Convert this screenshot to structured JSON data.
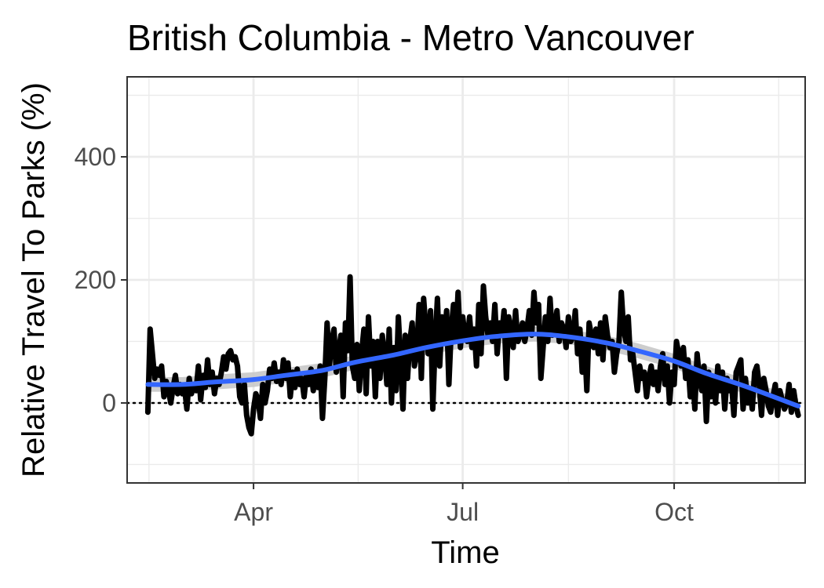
{
  "chart_data": {
    "type": "line",
    "title": "British Columbia - Metro Vancouver",
    "xlabel": "Time",
    "ylabel": "Relative Travel To Parks (%)",
    "x_ticks": [
      {
        "date": "2020-04-01",
        "label": "Apr"
      },
      {
        "date": "2020-07-01",
        "label": "Jul"
      },
      {
        "date": "2020-10-01",
        "label": "Oct"
      }
    ],
    "y_ticks": [
      0,
      200,
      400
    ],
    "xlim": [
      "2020-02-06",
      "2020-11-27"
    ],
    "ylim": [
      -130,
      530
    ],
    "grid": true,
    "reference_line": {
      "y": 0,
      "style": "dotted"
    },
    "colors": {
      "observed": "#000000",
      "smooth": "#3366FF",
      "ribbon": "#C8C8C8",
      "grid": "#EBEBEB",
      "panel_border": "#333333"
    },
    "series": [
      {
        "kind": "observed",
        "x": [
          "2020-02-15",
          "2020-02-16",
          "2020-02-17",
          "2020-02-18",
          "2020-02-19",
          "2020-02-20",
          "2020-02-21",
          "2020-02-22",
          "2020-02-23",
          "2020-02-24",
          "2020-02-25",
          "2020-02-26",
          "2020-02-27",
          "2020-02-28",
          "2020-02-29",
          "2020-03-01",
          "2020-03-02",
          "2020-03-03",
          "2020-03-04",
          "2020-03-05",
          "2020-03-06",
          "2020-03-07",
          "2020-03-08",
          "2020-03-09",
          "2020-03-10",
          "2020-03-11",
          "2020-03-12",
          "2020-03-13",
          "2020-03-14",
          "2020-03-15",
          "2020-03-16",
          "2020-03-17",
          "2020-03-18",
          "2020-03-19",
          "2020-03-20",
          "2020-03-21",
          "2020-03-22",
          "2020-03-23",
          "2020-03-24",
          "2020-03-25",
          "2020-03-26",
          "2020-03-27",
          "2020-03-28",
          "2020-03-29",
          "2020-03-30",
          "2020-03-31",
          "2020-04-01",
          "2020-04-02",
          "2020-04-03",
          "2020-04-04",
          "2020-04-05",
          "2020-04-06",
          "2020-04-07",
          "2020-04-08",
          "2020-04-09",
          "2020-04-10",
          "2020-04-11",
          "2020-04-12",
          "2020-04-13",
          "2020-04-14",
          "2020-04-15",
          "2020-04-16",
          "2020-04-17",
          "2020-04-18",
          "2020-04-19",
          "2020-04-20",
          "2020-04-21",
          "2020-04-22",
          "2020-04-23",
          "2020-04-24",
          "2020-04-25",
          "2020-04-26",
          "2020-04-27",
          "2020-04-28",
          "2020-04-29",
          "2020-04-30",
          "2020-05-01",
          "2020-05-02",
          "2020-05-03",
          "2020-05-04",
          "2020-05-05",
          "2020-05-06",
          "2020-05-07",
          "2020-05-08",
          "2020-05-09",
          "2020-05-10",
          "2020-05-11",
          "2020-05-12",
          "2020-05-13",
          "2020-05-14",
          "2020-05-15",
          "2020-05-16",
          "2020-05-17",
          "2020-05-18",
          "2020-05-19",
          "2020-05-20",
          "2020-05-21",
          "2020-05-22",
          "2020-05-23",
          "2020-05-24",
          "2020-05-25",
          "2020-05-26",
          "2020-05-27",
          "2020-05-28",
          "2020-05-29",
          "2020-05-30",
          "2020-05-31",
          "2020-06-01",
          "2020-06-02",
          "2020-06-03",
          "2020-06-04",
          "2020-06-05",
          "2020-06-06",
          "2020-06-07",
          "2020-06-08",
          "2020-06-09",
          "2020-06-10",
          "2020-06-11",
          "2020-06-12",
          "2020-06-13",
          "2020-06-14",
          "2020-06-15",
          "2020-06-16",
          "2020-06-17",
          "2020-06-18",
          "2020-06-19",
          "2020-06-20",
          "2020-06-21",
          "2020-06-22",
          "2020-06-23",
          "2020-06-24",
          "2020-06-25",
          "2020-06-26",
          "2020-06-27",
          "2020-06-28",
          "2020-06-29",
          "2020-06-30",
          "2020-07-01",
          "2020-07-02",
          "2020-07-03",
          "2020-07-04",
          "2020-07-05",
          "2020-07-06",
          "2020-07-07",
          "2020-07-08",
          "2020-07-09",
          "2020-07-10",
          "2020-07-11",
          "2020-07-12",
          "2020-07-13",
          "2020-07-14",
          "2020-07-15",
          "2020-07-16",
          "2020-07-17",
          "2020-07-18",
          "2020-07-19",
          "2020-07-20",
          "2020-07-21",
          "2020-07-22",
          "2020-07-23",
          "2020-07-24",
          "2020-07-25",
          "2020-07-26",
          "2020-07-27",
          "2020-07-28",
          "2020-07-29",
          "2020-07-30",
          "2020-07-31",
          "2020-08-01",
          "2020-08-02",
          "2020-08-03",
          "2020-08-04",
          "2020-08-05",
          "2020-08-06",
          "2020-08-07",
          "2020-08-08",
          "2020-08-09",
          "2020-08-10",
          "2020-08-11",
          "2020-08-12",
          "2020-08-13",
          "2020-08-14",
          "2020-08-15",
          "2020-08-16",
          "2020-08-17",
          "2020-08-18",
          "2020-08-19",
          "2020-08-20",
          "2020-08-21",
          "2020-08-22",
          "2020-08-23",
          "2020-08-24",
          "2020-08-25",
          "2020-08-26",
          "2020-08-27",
          "2020-08-28",
          "2020-08-29",
          "2020-08-30",
          "2020-08-31",
          "2020-09-01",
          "2020-09-02",
          "2020-09-03",
          "2020-09-04",
          "2020-09-05",
          "2020-09-06",
          "2020-09-07",
          "2020-09-08",
          "2020-09-09",
          "2020-09-10",
          "2020-09-11",
          "2020-09-12",
          "2020-09-13",
          "2020-09-14",
          "2020-09-15",
          "2020-09-16",
          "2020-09-17",
          "2020-09-18",
          "2020-09-19",
          "2020-09-20",
          "2020-09-21",
          "2020-09-22",
          "2020-09-23",
          "2020-09-24",
          "2020-09-25",
          "2020-09-26",
          "2020-09-27",
          "2020-09-28",
          "2020-09-29",
          "2020-09-30",
          "2020-10-01",
          "2020-10-02",
          "2020-10-03",
          "2020-10-04",
          "2020-10-05",
          "2020-10-06",
          "2020-10-07",
          "2020-10-08",
          "2020-10-09",
          "2020-10-10",
          "2020-10-11",
          "2020-10-12",
          "2020-10-13",
          "2020-10-14",
          "2020-10-15",
          "2020-10-16",
          "2020-10-17",
          "2020-10-18",
          "2020-10-19",
          "2020-10-20",
          "2020-10-21",
          "2020-10-22",
          "2020-10-23",
          "2020-10-24",
          "2020-10-25",
          "2020-10-26",
          "2020-10-27",
          "2020-10-28",
          "2020-10-29",
          "2020-10-30",
          "2020-10-31",
          "2020-11-01",
          "2020-11-02",
          "2020-11-03",
          "2020-11-04",
          "2020-11-05",
          "2020-11-06",
          "2020-11-07",
          "2020-11-08",
          "2020-11-09",
          "2020-11-10",
          "2020-11-11",
          "2020-11-12",
          "2020-11-13",
          "2020-11-14",
          "2020-11-15",
          "2020-11-16",
          "2020-11-17",
          "2020-11-18",
          "2020-11-19",
          "2020-11-20",
          "2020-11-21",
          "2020-11-22",
          "2020-11-23",
          "2020-11-24"
        ],
        "values": [
          -15,
          120,
          80,
          40,
          55,
          45,
          60,
          10,
          35,
          20,
          0,
          25,
          45,
          15,
          30,
          15,
          25,
          -10,
          40,
          15,
          30,
          20,
          60,
          5,
          45,
          25,
          70,
          30,
          50,
          15,
          40,
          30,
          50,
          75,
          55,
          80,
          85,
          70,
          75,
          60,
          10,
          0,
          30,
          -20,
          -40,
          -50,
          -10,
          15,
          5,
          -25,
          30,
          0,
          20,
          55,
          40,
          65,
          35,
          50,
          30,
          70,
          40,
          65,
          10,
          50,
          25,
          55,
          30,
          40,
          10,
          45,
          30,
          55,
          20,
          50,
          25,
          60,
          -25,
          40,
          130,
          60,
          100,
          120,
          50,
          85,
          110,
          10,
          130,
          85,
          205,
          60,
          40,
          95,
          20,
          80,
          120,
          15,
          140,
          60,
          100,
          10,
          100,
          40,
          110,
          80,
          30,
          120,
          0,
          90,
          20,
          140,
          70,
          -10,
          110,
          40,
          100,
          130,
          60,
          80,
          160,
          40,
          170,
          120,
          80,
          150,
          -10,
          100,
          170,
          60,
          140,
          100,
          150,
          30,
          120,
          160,
          100,
          180,
          90,
          140,
          110,
          100,
          140,
          90,
          120,
          60,
          160,
          80,
          190,
          140,
          110,
          130,
          100,
          160,
          80,
          130,
          110,
          150,
          40,
          140,
          120,
          90,
          150,
          100,
          110,
          130,
          100,
          120,
          150,
          110,
          180,
          130,
          160,
          40,
          90,
          140,
          100,
          170,
          110,
          120,
          150,
          100,
          130,
          120,
          90,
          140,
          100,
          110,
          150,
          80,
          120,
          50,
          100,
          20,
          130,
          110,
          90,
          120,
          80,
          130,
          70,
          140,
          110,
          90,
          100,
          50,
          80,
          100,
          180,
          120,
          100,
          140,
          70,
          80,
          50,
          20,
          60,
          40,
          50,
          10,
          40,
          60,
          30,
          50,
          20,
          60,
          80,
          30,
          60,
          0,
          50,
          30,
          100,
          80,
          60,
          90,
          40,
          70,
          10,
          50,
          -10,
          80,
          40,
          20,
          60,
          -30,
          50,
          10,
          40,
          0,
          60,
          20,
          50,
          -10,
          40,
          20,
          30,
          -20,
          50,
          60,
          70,
          -10,
          40,
          0,
          20,
          -10,
          50,
          60,
          30,
          -20,
          40,
          20,
          -5,
          -15,
          10,
          30,
          -20,
          20,
          5,
          -10,
          0,
          30,
          -15,
          20,
          -5,
          -20
        ],
        "note": ""
      },
      {
        "kind": "smooth",
        "x": [
          "2020-02-15",
          "2020-03-01",
          "2020-03-15",
          "2020-04-01",
          "2020-04-15",
          "2020-05-01",
          "2020-05-15",
          "2020-06-01",
          "2020-06-15",
          "2020-07-01",
          "2020-07-15",
          "2020-08-01",
          "2020-08-15",
          "2020-09-01",
          "2020-09-15",
          "2020-10-01",
          "2020-10-15",
          "2020-11-01",
          "2020-11-24"
        ],
        "values": [
          30,
          30,
          34,
          38,
          45,
          53,
          66,
          78,
          90,
          101,
          108,
          112,
          108,
          98,
          85,
          68,
          48,
          27,
          -5
        ]
      }
    ]
  }
}
